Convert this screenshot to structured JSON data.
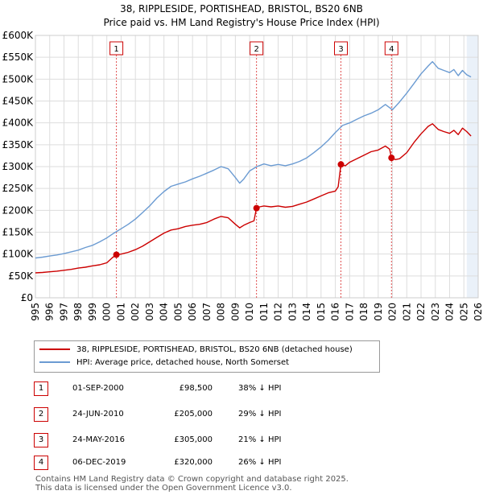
{
  "title_lines": [
    "38, RIPPLESIDE, PORTISHEAD, BRISTOL, BS20 6NB",
    "Price paid vs. HM Land Registry's House Price Index (HPI)"
  ],
  "colors": {
    "red": "#cc0000",
    "blue": "#6b9bd2",
    "grid": "#dddddd",
    "band": "#dce7f5"
  },
  "chart_data": {
    "type": "line",
    "title": "38, RIPPLESIDE, PORTISHEAD, BRISTOL, BS20 6NB — Price paid vs. HM Land Registry's House Price Index (HPI)",
    "xlabel": "",
    "ylabel": "",
    "xlim": [
      1995,
      2026
    ],
    "ylim": [
      0,
      600000
    ],
    "y_ticks": [
      0,
      50000,
      100000,
      150000,
      200000,
      250000,
      300000,
      350000,
      400000,
      450000,
      500000,
      550000,
      600000
    ],
    "y_tick_labels": [
      "£0",
      "£50K",
      "£100K",
      "£150K",
      "£200K",
      "£250K",
      "£300K",
      "£350K",
      "£400K",
      "£450K",
      "£500K",
      "£550K",
      "£600K"
    ],
    "x_ticks": [
      1995,
      1996,
      1997,
      1998,
      1999,
      2000,
      2001,
      2002,
      2003,
      2004,
      2005,
      2006,
      2007,
      2008,
      2009,
      2010,
      2011,
      2012,
      2013,
      2014,
      2015,
      2016,
      2017,
      2018,
      2019,
      2020,
      2021,
      2022,
      2023,
      2024,
      2025,
      2026
    ],
    "x_tick_labels": [
      "1995",
      "1996",
      "1997",
      "1998",
      "1999",
      "2000",
      "2001",
      "2002",
      "2003",
      "2004",
      "2005",
      "2006",
      "2007",
      "2008",
      "2009",
      "2010",
      "2011",
      "2012",
      "2013",
      "2014",
      "2015",
      "2016",
      "2017",
      "2018",
      "2019",
      "2020",
      "2021",
      "2022",
      "2023",
      "2024",
      "2025",
      "2026"
    ],
    "shaded_span": [
      2025.2,
      2026
    ],
    "grid": true,
    "series": [
      {
        "name": "38, RIPPLESIDE, PORTISHEAD, BRISTOL, BS20 6NB (detached house)",
        "color": "#cc0000",
        "x": [
          1995.0,
          1995.5,
          1996.0,
          1996.5,
          1997.0,
          1997.5,
          1998.0,
          1998.5,
          1999.0,
          1999.5,
          2000.0,
          2000.4,
          2000.67,
          2001.0,
          2001.5,
          2002.0,
          2002.5,
          2003.0,
          2003.5,
          2004.0,
          2004.5,
          2005.0,
          2005.5,
          2006.0,
          2006.5,
          2007.0,
          2007.5,
          2008.0,
          2008.5,
          2009.0,
          2009.3,
          2009.6,
          2010.0,
          2010.3,
          2010.48,
          2010.7,
          2011.0,
          2011.5,
          2012.0,
          2012.5,
          2013.0,
          2013.5,
          2014.0,
          2014.5,
          2015.0,
          2015.5,
          2016.0,
          2016.2,
          2016.39,
          2016.7,
          2017.0,
          2017.5,
          2018.0,
          2018.5,
          2019.0,
          2019.5,
          2019.8,
          2019.93,
          2020.2,
          2020.5,
          2021.0,
          2021.5,
          2022.0,
          2022.5,
          2022.8,
          2023.2,
          2023.6,
          2024.0,
          2024.3,
          2024.6,
          2024.9,
          2025.2,
          2025.5
        ],
        "values": [
          57000,
          58000,
          59500,
          61000,
          63000,
          65000,
          68000,
          70000,
          73000,
          75500,
          80000,
          92000,
          98500,
          100000,
          104000,
          110000,
          118000,
          128000,
          138000,
          148000,
          155000,
          158000,
          163000,
          166000,
          168000,
          172000,
          180000,
          186000,
          183000,
          168000,
          160000,
          166000,
          172000,
          176000,
          205000,
          208000,
          210000,
          208000,
          210000,
          207000,
          209000,
          214000,
          219000,
          226000,
          233000,
          240000,
          244000,
          254000,
          305000,
          302000,
          310000,
          318000,
          326000,
          334000,
          338000,
          347000,
          340000,
          320000,
          316000,
          318000,
          332000,
          355000,
          375000,
          392000,
          398000,
          385000,
          380000,
          376000,
          383000,
          373000,
          388000,
          380000,
          370000
        ]
      },
      {
        "name": "HPI: Average price, detached house, North Somerset",
        "color": "#6b9bd2",
        "x": [
          1995.0,
          1995.5,
          1996.0,
          1996.5,
          1997.0,
          1997.5,
          1998.0,
          1998.5,
          1999.0,
          1999.5,
          2000.0,
          2000.5,
          2001.0,
          2001.5,
          2002.0,
          2002.5,
          2003.0,
          2003.5,
          2004.0,
          2004.5,
          2005.0,
          2005.5,
          2006.0,
          2006.5,
          2007.0,
          2007.5,
          2008.0,
          2008.5,
          2009.0,
          2009.3,
          2009.6,
          2010.0,
          2010.5,
          2011.0,
          2011.5,
          2012.0,
          2012.5,
          2013.0,
          2013.5,
          2014.0,
          2014.5,
          2015.0,
          2015.5,
          2016.0,
          2016.5,
          2017.0,
          2017.5,
          2018.0,
          2018.5,
          2019.0,
          2019.5,
          2020.0,
          2020.5,
          2021.0,
          2021.5,
          2022.0,
          2022.5,
          2022.8,
          2023.2,
          2023.6,
          2024.0,
          2024.3,
          2024.6,
          2024.9,
          2025.2,
          2025.5
        ],
        "values": [
          91000,
          93000,
          95500,
          98000,
          101000,
          105000,
          109000,
          115000,
          120000,
          128000,
          137000,
          148000,
          158000,
          168000,
          180000,
          195000,
          210000,
          228000,
          243000,
          255000,
          260000,
          265000,
          272000,
          278000,
          285000,
          292000,
          300000,
          295000,
          275000,
          262000,
          272000,
          290000,
          300000,
          306000,
          302000,
          305000,
          302000,
          306000,
          312000,
          320000,
          332000,
          345000,
          360000,
          378000,
          394000,
          400000,
          408000,
          416000,
          422000,
          430000,
          442000,
          430000,
          448000,
          468000,
          490000,
          512000,
          530000,
          540000,
          525000,
          520000,
          515000,
          522000,
          508000,
          520000,
          510000,
          505000
        ]
      }
    ],
    "sales": [
      {
        "num": "1",
        "x": 2000.67,
        "price": 98500
      },
      {
        "num": "2",
        "x": 2010.48,
        "price": 205000
      },
      {
        "num": "3",
        "x": 2016.39,
        "price": 305000
      },
      {
        "num": "4",
        "x": 2019.93,
        "price": 320000
      }
    ]
  },
  "legend": {
    "red_label": "38, RIPPLESIDE, PORTISHEAD, BRISTOL, BS20 6NB (detached house)",
    "blue_label": "HPI: Average price, detached house, North Somerset"
  },
  "transactions": [
    {
      "num": "1",
      "date": "01-SEP-2000",
      "price": "£98,500",
      "hpi": "38% ↓ HPI"
    },
    {
      "num": "2",
      "date": "24-JUN-2010",
      "price": "£205,000",
      "hpi": "29% ↓ HPI"
    },
    {
      "num": "3",
      "date": "24-MAY-2016",
      "price": "£305,000",
      "hpi": "21% ↓ HPI"
    },
    {
      "num": "4",
      "date": "06-DEC-2019",
      "price": "£320,000",
      "hpi": "26% ↓ HPI"
    }
  ],
  "footer_lines": [
    "Contains HM Land Registry data © Crown copyright and database right 2025.",
    "This data is licensed under the Open Government Licence v3.0."
  ]
}
